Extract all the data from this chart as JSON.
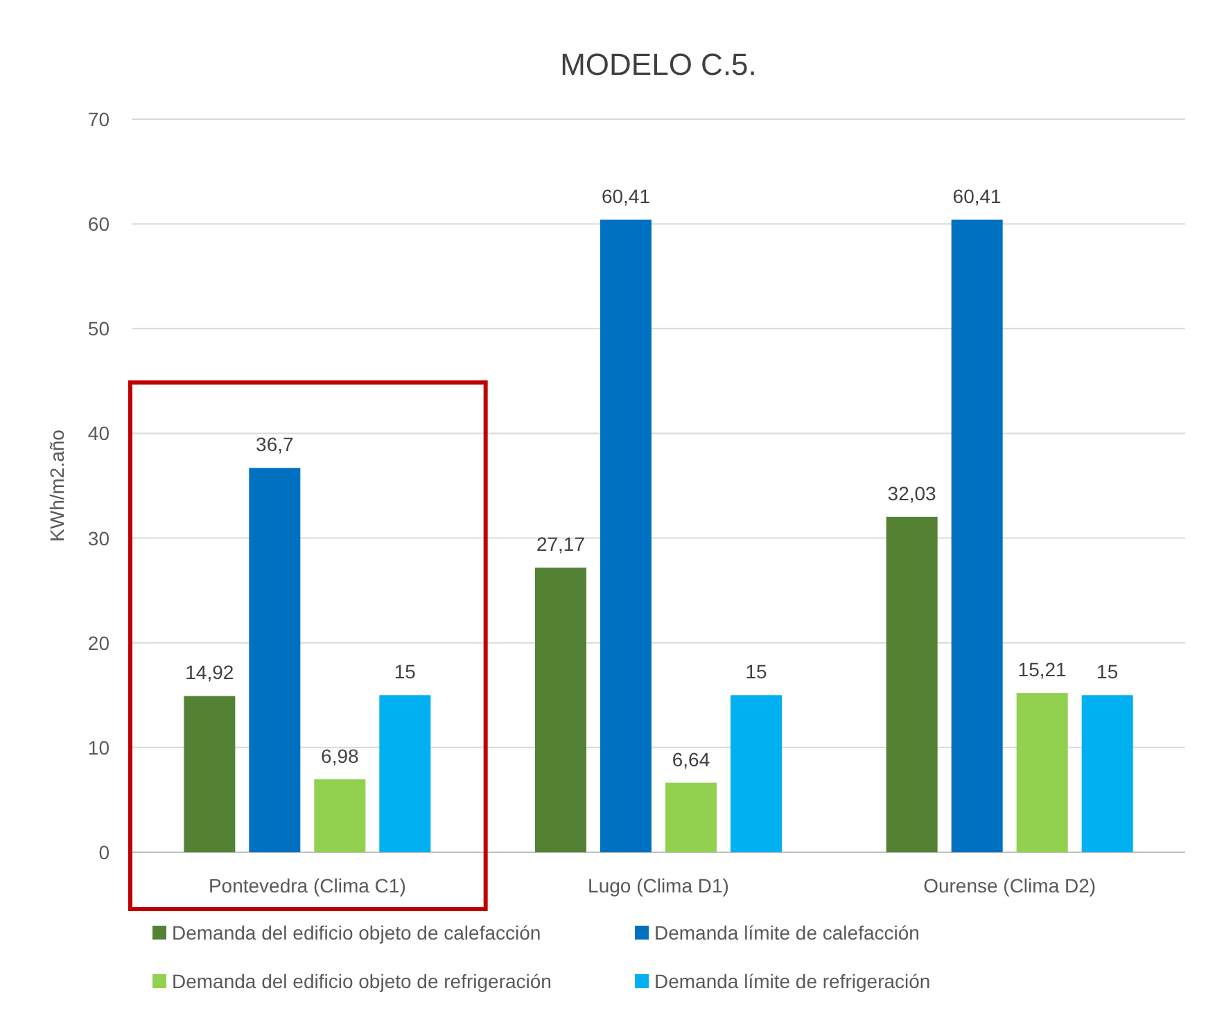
{
  "chart_data": {
    "type": "bar",
    "title": "MODELO C.5.",
    "ylabel": "KWh/m2.año",
    "categories": [
      "Pontevedra (Clima C1)",
      "Lugo (Clima D1)",
      "Ourense (Clima D2)"
    ],
    "series": [
      {
        "name": "Demanda del edificio objeto de calefacción",
        "color": "#548235",
        "values": [
          14.92,
          27.17,
          32.03
        ],
        "value_labels": [
          "14,92",
          "27,17",
          "32,03"
        ]
      },
      {
        "name": "Demanda límite de calefacción",
        "color": "#0070c0",
        "values": [
          36.7,
          60.41,
          60.41
        ],
        "value_labels": [
          "36,7",
          "60,41",
          "60,41"
        ]
      },
      {
        "name": "Demanda del edificio objeto de refrigeración",
        "color": "#92d050",
        "values": [
          6.98,
          6.64,
          15.21
        ],
        "value_labels": [
          "6,98",
          "6,64",
          "15,21"
        ]
      },
      {
        "name": "Demanda límite de refrigeración",
        "color": "#00b0f0",
        "values": [
          15,
          15,
          15
        ],
        "value_labels": [
          "15",
          "15",
          "15"
        ]
      }
    ],
    "ylim": [
      0,
      70
    ],
    "yticks": [
      0,
      10,
      20,
      30,
      40,
      50,
      60,
      70
    ],
    "grid": "y",
    "legend": "bottom"
  }
}
